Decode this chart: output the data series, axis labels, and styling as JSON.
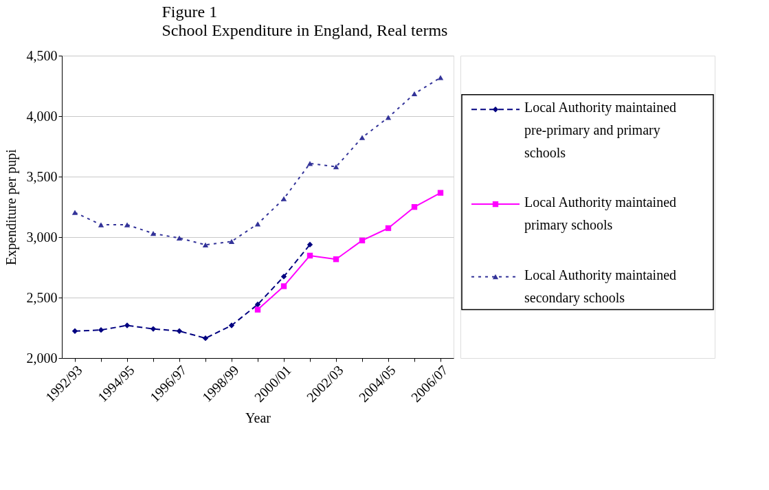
{
  "chart_data": {
    "type": "line",
    "title": "Figure 1",
    "subtitle": "School Expenditure in England, Real terms",
    "xlabel": "Year",
    "ylabel": "Expenditure per pupi",
    "categories": [
      "1992/93",
      null,
      "1994/95",
      null,
      "1996/97",
      null,
      "1998/99",
      null,
      "2000/01",
      null,
      "2002/03",
      null,
      "2004/05",
      null,
      "2006/07"
    ],
    "series": [
      {
        "name": "Local Authority maintained pre-primary and primary schools",
        "color": "#000080",
        "line_style": "dashed",
        "marker": "diamond",
        "values": [
          2223,
          2232,
          2270,
          2241,
          2223,
          2164,
          2270,
          2443,
          2674,
          2938,
          null,
          null,
          null,
          null,
          null
        ]
      },
      {
        "name": "Local Authority maintained primary schools",
        "color": "#ff00ff",
        "line_style": "solid",
        "marker": "square",
        "values": [
          null,
          null,
          null,
          null,
          null,
          null,
          null,
          2400,
          2594,
          2847,
          2817,
          2972,
          3074,
          3249,
          3366
        ]
      },
      {
        "name": "Local Authority maintained secondary schools",
        "color": "#333399",
        "line_style": "dotted",
        "marker": "triangle",
        "values": [
          3204,
          3102,
          3102,
          3030,
          2992,
          2936,
          2964,
          3109,
          3317,
          3609,
          3581,
          3823,
          3989,
          4185,
          4319
        ]
      }
    ],
    "ylim": [
      2000,
      4500
    ],
    "yticks": [
      {
        "value": 2000,
        "label": "2,000"
      },
      {
        "value": 2500,
        "label": "2,500"
      },
      {
        "value": 3000,
        "label": "3,000"
      },
      {
        "value": 3500,
        "label": "3,500"
      },
      {
        "value": 4000,
        "label": "4,000"
      },
      {
        "value": 4500,
        "label": "4,500"
      }
    ],
    "grid": "y",
    "legend": "right"
  }
}
